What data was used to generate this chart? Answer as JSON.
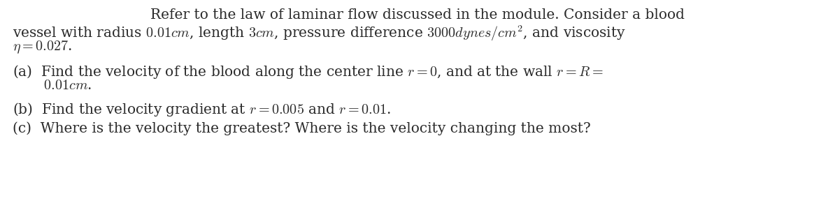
{
  "bg_color": "#ffffff",
  "text_color": "#2a2a2a",
  "font_size": 14.5,
  "line1": "Refer to the law of laminar flow discussed in the module. Consider a blood",
  "line2": "vessel with radius $0.01cm$, length $3cm$, pressure difference $3000dynes/cm^{2}$, and viscosity",
  "line3": "$\\eta = 0.027$.",
  "line_a1": "(a)  Find the velocity of the blood along the center line $r = 0$, and at the wall $r = R =$",
  "line_a2": "       $0.01cm$.",
  "line_b": "(b)  Find the velocity gradient at $r = 0.005$ and $r = 0.01$.",
  "line_c": "(c)  Where is the velocity the greatest? Where is the velocity changing the most?"
}
